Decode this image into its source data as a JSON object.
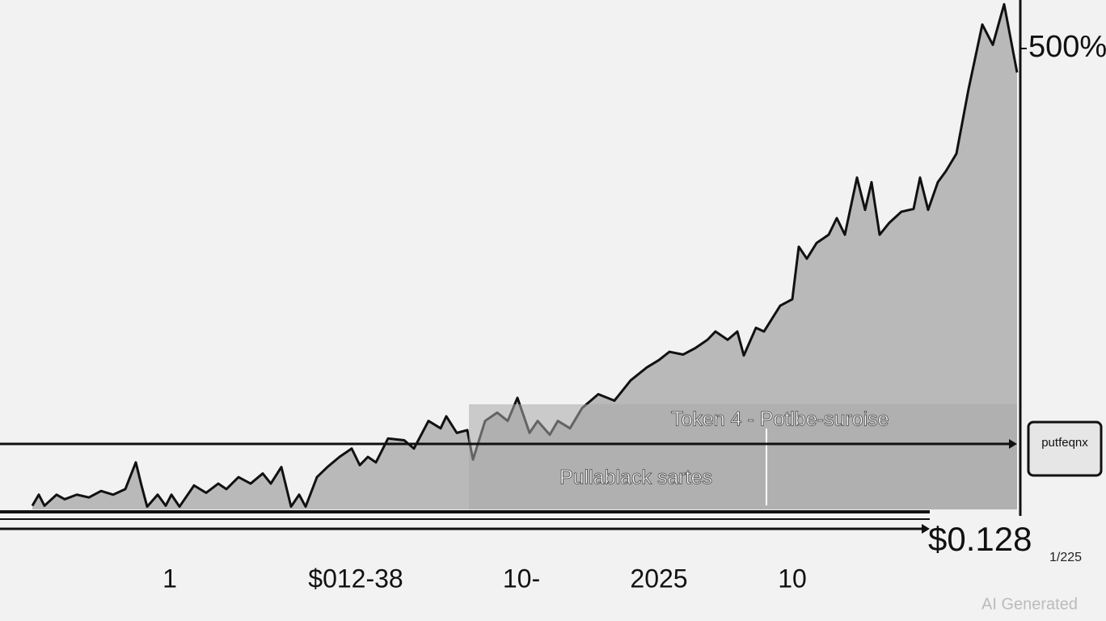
{
  "chart_data": {
    "type": "area",
    "x": [
      40,
      48,
      55,
      70,
      80,
      95,
      110,
      125,
      140,
      155,
      168,
      175,
      182,
      195,
      205,
      212,
      222,
      240,
      255,
      270,
      280,
      295,
      310,
      325,
      335,
      348,
      360,
      370,
      378,
      392,
      405,
      420,
      435,
      445,
      455,
      465,
      480,
      500,
      512,
      530,
      545,
      552,
      565,
      578,
      585,
      600,
      615,
      628,
      640,
      655,
      665,
      680,
      690,
      705,
      720,
      740,
      760,
      780,
      800,
      815,
      828,
      845,
      860,
      875,
      885,
      900,
      912,
      920,
      935,
      945,
      965,
      980,
      988,
      998,
      1010,
      1025,
      1035,
      1045,
      1060,
      1070,
      1078,
      1088,
      1100,
      1115,
      1130,
      1138,
      1148,
      1160,
      1170,
      1183,
      1198,
      1215,
      1228,
      1242,
      1258
    ],
    "values": [
      4,
      16,
      4,
      16,
      11,
      16,
      13,
      20,
      16,
      22,
      51,
      26,
      3,
      16,
      4,
      16,
      3,
      26,
      18,
      28,
      22,
      35,
      28,
      39,
      28,
      46,
      3,
      16,
      3,
      35,
      46,
      57,
      66,
      48,
      57,
      51,
      77,
      75,
      66,
      96,
      88,
      101,
      83,
      86,
      54,
      96,
      105,
      96,
      121,
      83,
      96,
      81,
      96,
      88,
      110,
      125,
      118,
      140,
      154,
      162,
      171,
      168,
      175,
      184,
      193,
      184,
      193,
      167,
      197,
      193,
      221,
      228,
      285,
      272,
      289,
      298,
      316,
      298,
      360,
      325,
      355,
      298,
      311,
      323,
      326,
      360,
      325,
      355,
      367,
      386,
      456,
      526,
      504,
      548,
      474
    ],
    "color": "#b9b9b9",
    "xlim": [
      0,
      1260
    ],
    "xticks": [
      {
        "value": 210,
        "label": "1"
      },
      {
        "value": 440,
        "label": "$012-38"
      },
      {
        "value": 645,
        "label": "10-"
      },
      {
        "value": 815,
        "label": "2025"
      },
      {
        "value": 980,
        "label": "10"
      }
    ],
    "ylim": [
      0,
      550
    ],
    "yticks": [
      {
        "value": 500,
        "label": "500%"
      }
    ],
    "annotations": [
      "Token 4  - Potlbe-suroise",
      "Pullablack sartes",
      "$0.128",
      "putfeqnx",
      "1/225"
    ],
    "watermark": "AI Generated"
  }
}
